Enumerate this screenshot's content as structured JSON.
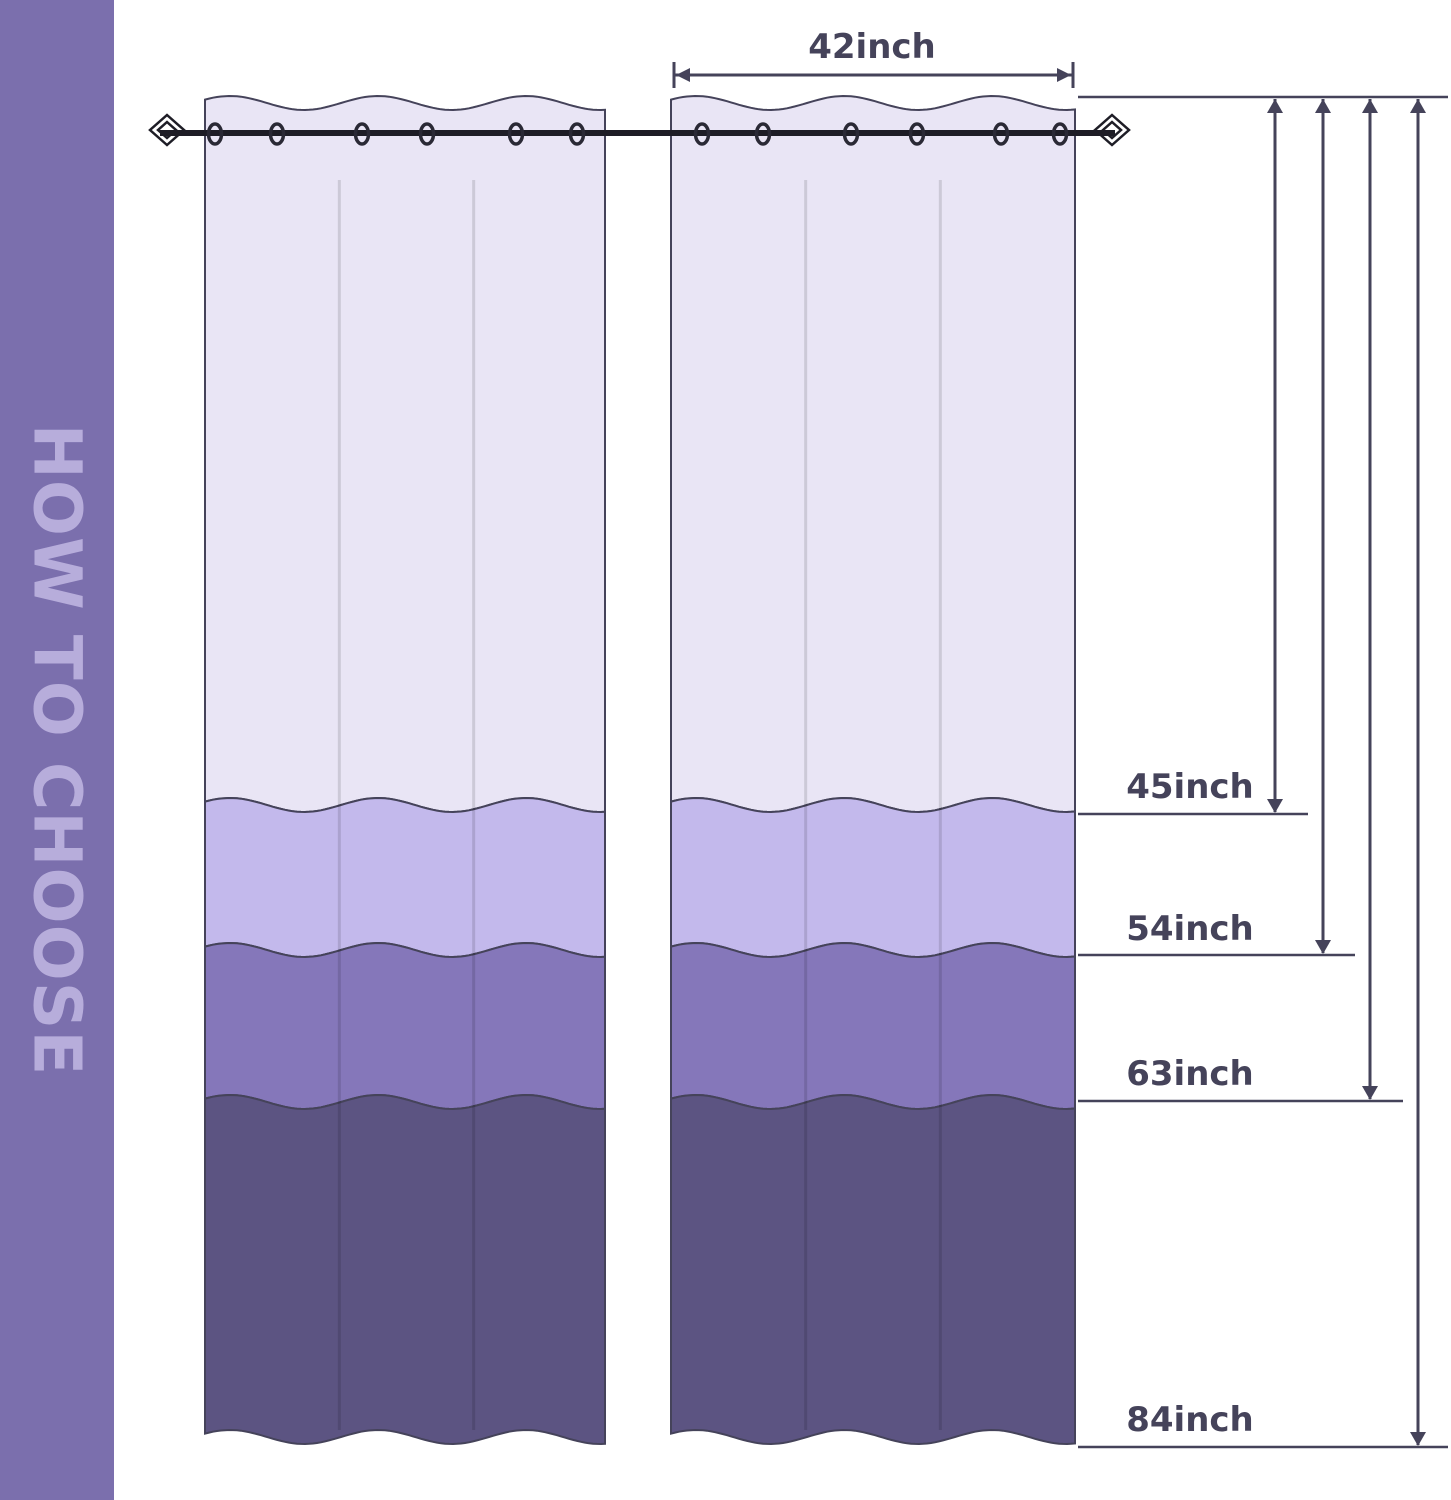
{
  "sidebar": {
    "title": "HOW TO CHOOSE"
  },
  "width_label": "42inch",
  "length_labels": [
    "45inch",
    "54inch",
    "63inch",
    "84inch"
  ],
  "colors": {
    "sidebar": "#7b6fad",
    "sidebar_text": "#b7addb",
    "line": "#45435a",
    "band_top": "#e9e5f5",
    "band_light": "#c3b9ec",
    "band_mid": "#8577ba",
    "band_dark": "#5c5482"
  }
}
